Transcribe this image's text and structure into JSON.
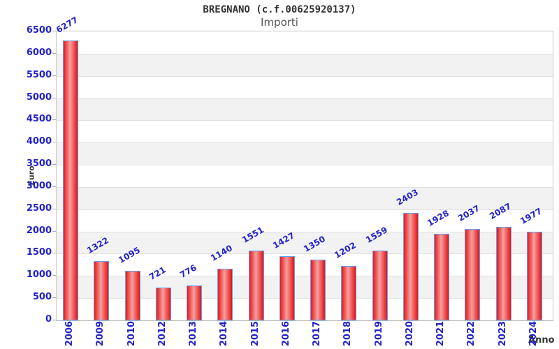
{
  "chart_data": {
    "type": "bar",
    "title": "BREGNANO (c.f.00625920137)",
    "subtitle": "Importi",
    "xlabel": "Anno",
    "ylabel": "Euro",
    "categories": [
      "2006",
      "2009",
      "2010",
      "2012",
      "2013",
      "2014",
      "2015",
      "2016",
      "2017",
      "2018",
      "2019",
      "2020",
      "2021",
      "2022",
      "2023",
      "2024"
    ],
    "values": [
      6277,
      1322,
      1095,
      721,
      776,
      1140,
      1551,
      1427,
      1350,
      1202,
      1559,
      2403,
      1928,
      2037,
      2087,
      1977
    ],
    "bar_value_labels": [
      "6277",
      "1322",
      "1095",
      "721",
      "776",
      "1140",
      "1551",
      "1427",
      "1350",
      "1202",
      "1559",
      "2403",
      "1928",
      "2037",
      "2087",
      "1977"
    ],
    "ylim": [
      0,
      6500
    ],
    "ytick_step": 500,
    "yticks": [
      0,
      500,
      1000,
      1500,
      2000,
      2500,
      3000,
      3500,
      4000,
      4500,
      5000,
      5500,
      6000,
      6500
    ],
    "grid": "alternating horizontal bands every 500",
    "legend": null,
    "style": {
      "bar_fill_edge": "#e31b1b",
      "bar_fill_center": "#f5a0a0",
      "bar_border": "#64a2ef",
      "label_blue": "#2222cc",
      "band_gray": "#f2f2f2",
      "band_white": "#ffffff",
      "axis_title_color": "#333333",
      "title_color": "#333333",
      "subtitle_color": "#555555"
    }
  }
}
